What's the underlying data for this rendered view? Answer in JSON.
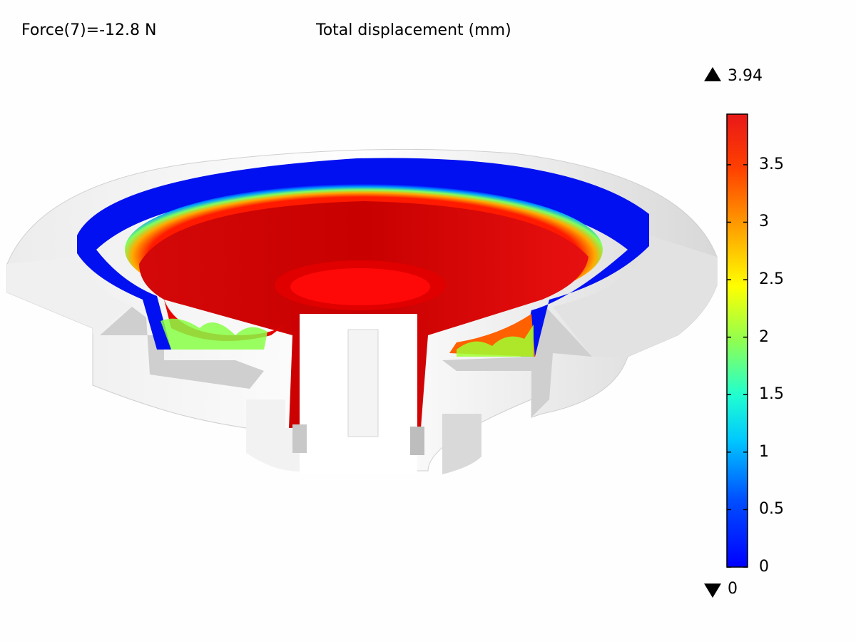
{
  "header": {
    "force_label": "Force(7)=-12.8 N",
    "plot_title": "Total displacement (mm)"
  },
  "legend": {
    "max_value": "3.94",
    "min_value": "0",
    "ticks": [
      "3.5",
      "3",
      "2.5",
      "2",
      "1.5",
      "1",
      "0.5",
      "0"
    ],
    "tick_values": [
      3.5,
      3.0,
      2.5,
      2.0,
      1.5,
      1.0,
      0.5,
      0.0
    ],
    "range": [
      0,
      3.94
    ],
    "colormap": "rainbow",
    "colors": [
      "#0000ff",
      "#0080ff",
      "#00ffff",
      "#80ff80",
      "#ffff00",
      "#ff8000",
      "#ff0000",
      "#e02020"
    ]
  },
  "model": {
    "name": "speaker-surround-cutaway",
    "surface_colors": {
      "housing": "#e4e4e4",
      "housing_shade": "#bdbdbd",
      "cone": "#e01010",
      "surround_edge": "#0000ee"
    }
  }
}
